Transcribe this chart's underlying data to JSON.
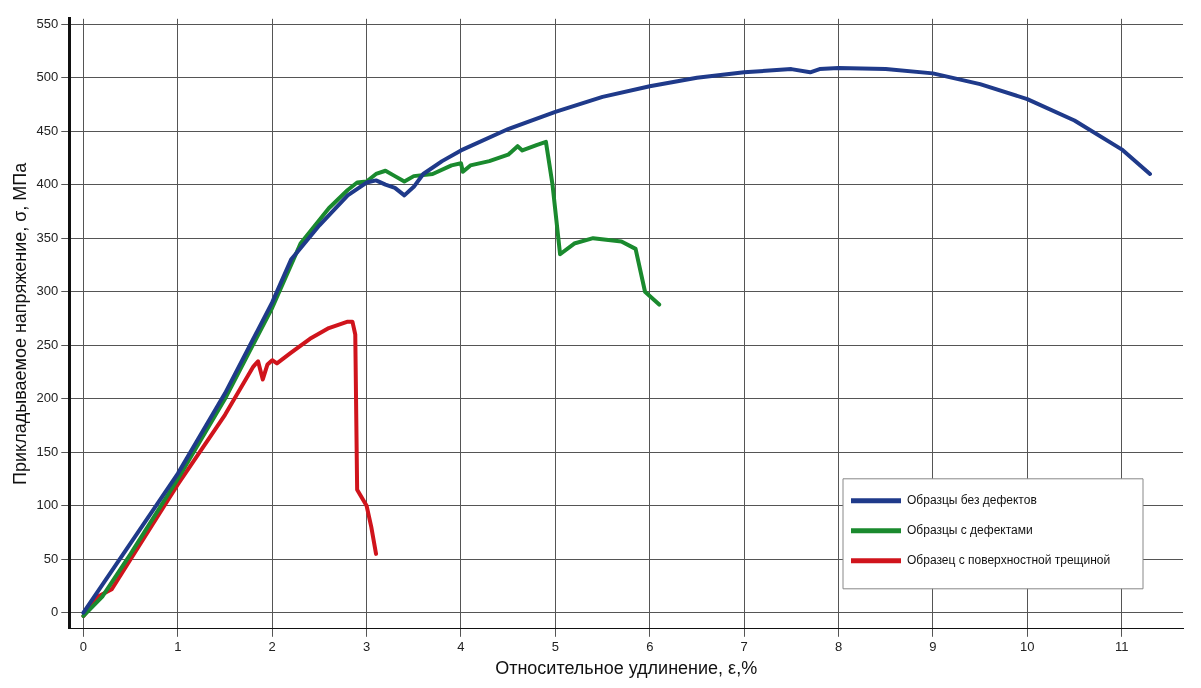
{
  "chart_data": {
    "type": "line",
    "xlabel": "Относительное удлинение, ε,%",
    "ylabel": "Прикладываемое напряжение, σ, МПа",
    "xlim": [
      -0.15,
      11.65
    ],
    "xticks": [
      0,
      1,
      2,
      3,
      4,
      5,
      6,
      7,
      8,
      9,
      10,
      11
    ],
    "ylim": [
      -15,
      555
    ],
    "yticks": [
      0,
      50,
      100,
      150,
      200,
      250,
      300,
      350,
      400,
      450,
      500,
      550
    ],
    "grid": true,
    "legend": "bottom right",
    "marker": "none",
    "line_style": "solid",
    "series": [
      {
        "name": "Образцы без дефектов",
        "color": "#1f3a8a",
        "x": [
          0,
          0.5,
          1,
          1.5,
          2,
          2.2,
          2.5,
          2.8,
          3,
          3.1,
          3.2,
          3.3,
          3.4,
          3.5,
          3.6,
          3.8,
          4,
          4.5,
          5,
          5.5,
          6,
          6.5,
          7,
          7.5,
          7.7,
          7.8,
          8,
          8.5,
          9,
          9.5,
          10,
          10.5,
          11,
          11.3
        ],
        "values": [
          0,
          65,
          130,
          205,
          290,
          330,
          362,
          390,
          402,
          404,
          400,
          397,
          390,
          398,
          410,
          422,
          432,
          452,
          468,
          482,
          492,
          500,
          505,
          508,
          505,
          508,
          509,
          508,
          504,
          494,
          480,
          460,
          433,
          410
        ]
      },
      {
        "name": "Образцы с дефектами",
        "color": "#1a8a2e",
        "x": [
          0,
          0.2,
          0.5,
          1,
          1.5,
          2,
          2.3,
          2.6,
          2.8,
          2.9,
          3,
          3.1,
          3.2,
          3.3,
          3.4,
          3.5,
          3.7,
          3.9,
          4,
          4.02,
          4.1,
          4.3,
          4.5,
          4.6,
          4.65,
          4.8,
          4.9,
          4.97,
          5.05,
          5.2,
          5.4,
          5.7,
          5.85,
          5.95,
          6.1
        ],
        "values": [
          -3,
          15,
          55,
          125,
          200,
          285,
          345,
          378,
          395,
          402,
          403,
          410,
          413,
          408,
          403,
          408,
          410,
          418,
          420,
          412,
          418,
          422,
          428,
          436,
          432,
          437,
          440,
          400,
          335,
          345,
          350,
          347,
          340,
          300,
          288
        ]
      },
      {
        "name": "Образец с поверхностной трещиной",
        "color": "#d0141c",
        "x": [
          0,
          0.15,
          0.3,
          0.5,
          1,
          1.5,
          1.8,
          1.85,
          1.9,
          1.95,
          2,
          2.05,
          2.2,
          2.4,
          2.6,
          2.8,
          2.85,
          2.88,
          2.9,
          3,
          3.05,
          3.1
        ],
        "values": [
          -3,
          15,
          22,
          50,
          120,
          185,
          230,
          235,
          218,
          232,
          236,
          233,
          243,
          256,
          266,
          272,
          272,
          260,
          115,
          100,
          80,
          55
        ]
      }
    ]
  }
}
